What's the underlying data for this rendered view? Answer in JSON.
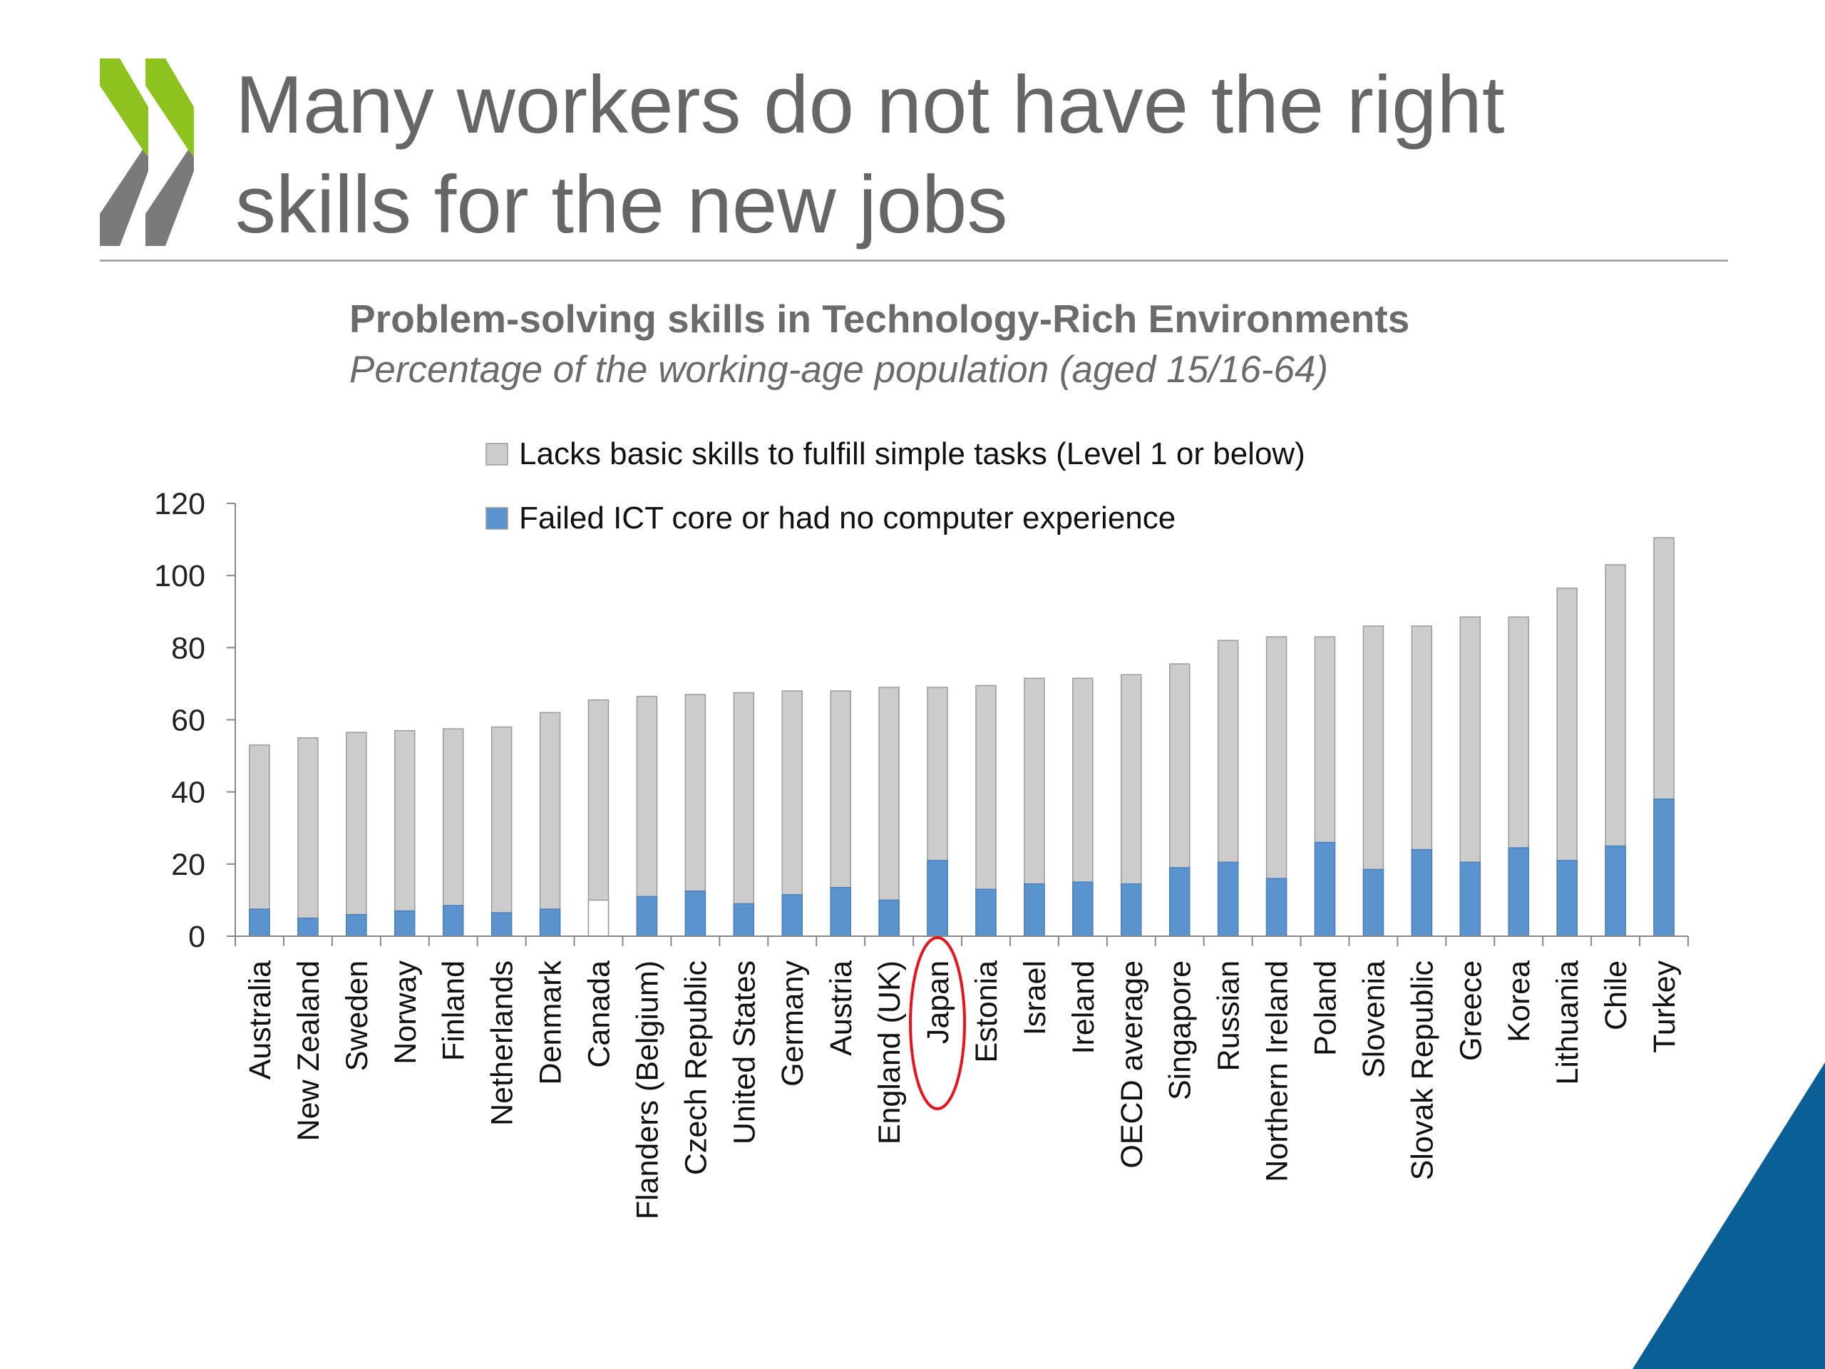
{
  "slide": {
    "title_line1": "Many workers do not have the right",
    "title_line2": "skills for the new jobs",
    "brand_colors": {
      "logo_green": "#8dc21f",
      "logo_gray": "#7a7a7a",
      "corner_blue": "#0b5f97"
    }
  },
  "chart_data": {
    "type": "bar",
    "stacked": false,
    "overlapping": true,
    "title": "Problem-solving skills in Technology-Rich Environments",
    "subtitle": "Percentage of the working-age population (aged 15/16-64)",
    "xlabel": "",
    "ylabel": "",
    "ylim": [
      0,
      120
    ],
    "yticks": [
      0,
      20,
      40,
      60,
      80,
      100,
      120
    ],
    "grid": false,
    "legend_position": "top",
    "categories": [
      "Australia",
      "New Zealand",
      "Sweden",
      "Norway",
      "Finland",
      "Netherlands",
      "Denmark",
      "Canada",
      "Flanders (Belgium)",
      "Czech Republic",
      "United States",
      "Germany",
      "Austria",
      "England (UK)",
      "Japan",
      "Estonia",
      "Israel",
      "Ireland",
      "OECD average",
      "Singapore",
      "Russian",
      "Northern Ireland",
      "Poland",
      "Slovenia",
      "Slovak Republic",
      "Greece",
      "Korea",
      "Lithuania",
      "Chile",
      "Turkey"
    ],
    "highlight_category": "Japan",
    "highlight_color": "#e8141c",
    "series": [
      {
        "name": "Lacks basic skills to fulfill simple tasks (Level 1 or below)",
        "color": "#cccccc",
        "values": [
          53,
          55,
          56.5,
          57,
          57.5,
          58,
          62,
          65.5,
          66.5,
          67,
          67.5,
          68,
          68,
          69,
          69,
          69.5,
          71.5,
          71.5,
          72.5,
          75.5,
          82,
          83,
          83,
          86,
          86,
          88.5,
          88.5,
          96.5,
          103,
          110.5
        ]
      },
      {
        "name": "Failed ICT core or had no computer experience",
        "color": "#5b93cf",
        "values": [
          7.5,
          5,
          6,
          7,
          8.5,
          6.5,
          7.5,
          10,
          11,
          12.5,
          9,
          11.5,
          13.5,
          10,
          21,
          13,
          14.5,
          15,
          14.5,
          19,
          20.5,
          16,
          26,
          18.5,
          24,
          20.5,
          24.5,
          21,
          25,
          38
        ]
      }
    ],
    "notes": "Canada's ICT bar is shown unfilled (white with outline)."
  }
}
